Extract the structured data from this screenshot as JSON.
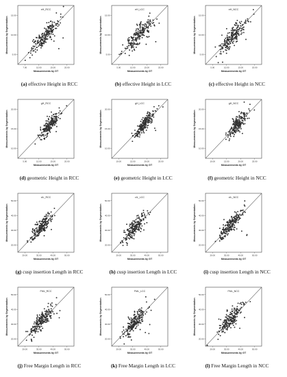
{
  "chart_data": [
    {
      "type": "scatter",
      "panel_title": "eH_RCC",
      "caption_letter": "(a)",
      "caption_text": "effective Height in RCC",
      "xlabel": "Measurements by GT",
      "ylabel": "Measurements by Segmentation",
      "xlim": [
        0,
        20
      ],
      "ylim": [
        0,
        20
      ],
      "x_ticks": [
        "7.00",
        "10.00",
        "15.00",
        "20.00"
      ],
      "y_ticks": [
        "5.00",
        "10.00",
        "15.00"
      ],
      "identity_line": true,
      "marker_color": "#333333",
      "n_points": 200,
      "center": [
        9.5,
        9.5
      ],
      "spread": 2.5,
      "noise": 1.4
    },
    {
      "type": "scatter",
      "panel_title": "eH_LCC",
      "caption_letter": "(b)",
      "caption_text": "effective Height in LCC",
      "xlabel": "Measurements by GT",
      "ylabel": "Measurements by Segmentation",
      "xlim": [
        0,
        20
      ],
      "ylim": [
        0,
        20
      ],
      "x_ticks": [
        "5.00",
        "10.00",
        "15.00",
        "20.00"
      ],
      "y_ticks": [
        "5.00",
        "10.00",
        "15.00"
      ],
      "identity_line": true,
      "marker_color": "#333333",
      "n_points": 200,
      "center": [
        9.3,
        9.5
      ],
      "spread": 2.6,
      "noise": 1.5
    },
    {
      "type": "scatter",
      "panel_title": "eH_NCC",
      "caption_letter": "(c)",
      "caption_text": "effective Height in NCC",
      "xlabel": "Measurements by GT",
      "ylabel": "Measurements by Segmentation",
      "xlim": [
        0,
        20
      ],
      "ylim": [
        0,
        20
      ],
      "x_ticks": [
        "5.00",
        "10.00",
        "15.00",
        "20.00"
      ],
      "y_ticks": [
        "5.00",
        "10.00",
        "15.00"
      ],
      "identity_line": true,
      "marker_color": "#333333",
      "n_points": 200,
      "center": [
        9.7,
        9.6
      ],
      "spread": 2.4,
      "noise": 1.5
    },
    {
      "type": "scatter",
      "panel_title": "gH_RCC",
      "caption_letter": "(d)",
      "caption_text": "geometric Height in RCC",
      "xlabel": "Measurements by GT",
      "ylabel": "Measurements by Segmentation",
      "xlim": [
        0,
        25
      ],
      "ylim": [
        0,
        25
      ],
      "x_ticks": [
        "5.00",
        "10.00",
        "15.00",
        "20.00"
      ],
      "y_ticks": [
        "10.00",
        "15.00",
        "20.00"
      ],
      "identity_line": true,
      "marker_color": "#333333",
      "n_points": 200,
      "center": [
        14.0,
        14.0
      ],
      "spread": 2.3,
      "noise": 1.6
    },
    {
      "type": "scatter",
      "panel_title": "gH_LCC",
      "caption_letter": "(e)",
      "caption_text": "geometric Height in LCC",
      "xlabel": "Measurements by GT",
      "ylabel": "Measurements by Segmentation",
      "xlim": [
        0,
        25
      ],
      "ylim": [
        0,
        25
      ],
      "x_ticks": [
        "10.00",
        "15.00",
        "20.00",
        "25.00"
      ],
      "y_ticks": [
        "10.00",
        "15.00",
        "20.00"
      ],
      "identity_line": true,
      "marker_color": "#333333",
      "n_points": 200,
      "center": [
        14.2,
        14.0
      ],
      "spread": 2.2,
      "noise": 1.5
    },
    {
      "type": "scatter",
      "panel_title": "gH_NCC",
      "caption_letter": "(f)",
      "caption_text": "geometric Height in NCC",
      "xlabel": "Measurements by GT",
      "ylabel": "Measurements by Segmentation",
      "xlim": [
        0,
        25
      ],
      "ylim": [
        0,
        25
      ],
      "x_ticks": [
        "10.00",
        "15.00",
        "20.00",
        "25.00"
      ],
      "y_ticks": [
        "10.00",
        "15.00",
        "20.00"
      ],
      "identity_line": true,
      "marker_color": "#333333",
      "n_points": 200,
      "center": [
        14.3,
        14.5
      ],
      "spread": 2.3,
      "noise": 1.6
    },
    {
      "type": "scatter",
      "panel_title": "cIL_RCC",
      "caption_letter": "(g)",
      "caption_text": "cusp insertion Length in RCC",
      "xlabel": "Measurements by GT",
      "ylabel": "Measurements by Segmentation",
      "xlim": [
        10,
        55
      ],
      "ylim": [
        10,
        55
      ],
      "x_ticks": [
        "20.00",
        "30.00",
        "40.00",
        "50.00"
      ],
      "y_ticks": [
        "20.00",
        "30.00",
        "40.00",
        "50.00"
      ],
      "identity_line": true,
      "marker_color": "#333333",
      "n_points": 200,
      "center": [
        29.0,
        29.5
      ],
      "spread": 4.5,
      "noise": 3.0
    },
    {
      "type": "scatter",
      "panel_title": "cIL_LCC",
      "caption_letter": "(h)",
      "caption_text": "cusp insertion Length in LCC",
      "xlabel": "Measurements by GT",
      "ylabel": "Measurements by Segmentation",
      "xlim": [
        10,
        55
      ],
      "ylim": [
        10,
        55
      ],
      "x_ticks": [
        "20.00",
        "30.00",
        "40.00",
        "50.00"
      ],
      "y_ticks": [
        "20.00",
        "30.00",
        "40.00",
        "50.00"
      ],
      "identity_line": true,
      "marker_color": "#333333",
      "n_points": 200,
      "center": [
        28.5,
        29.0
      ],
      "spread": 4.2,
      "noise": 3.2
    },
    {
      "type": "scatter",
      "panel_title": "cIL_NCC",
      "caption_letter": "(i)",
      "caption_text": "cusp insertion Length in NCC",
      "xlabel": "Measurements by GT",
      "ylabel": "Measurements by Segmentation",
      "xlim": [
        10,
        55
      ],
      "ylim": [
        10,
        55
      ],
      "x_ticks": [
        "20.00",
        "30.00",
        "40.00",
        "50.00"
      ],
      "y_ticks": [
        "20.00",
        "30.00",
        "40.00",
        "50.00"
      ],
      "identity_line": true,
      "marker_color": "#333333",
      "n_points": 200,
      "center": [
        30.0,
        30.5
      ],
      "spread": 4.8,
      "noise": 3.0
    },
    {
      "type": "scatter",
      "panel_title": "FML_RCC",
      "caption_letter": "(j)",
      "caption_text": "Free Margin Length in RCC",
      "xlabel": "Measurements by GT",
      "ylabel": "Measurements by Segmentation",
      "xlim": [
        15,
        55
      ],
      "ylim": [
        15,
        55
      ],
      "x_ticks": [
        "20.00",
        "30.00",
        "40.00",
        "50.00"
      ],
      "y_ticks": [
        "20.00",
        "30.00",
        "40.00",
        "50.00"
      ],
      "identity_line": true,
      "marker_color": "#333333",
      "n_points": 200,
      "center": [
        32.0,
        32.0
      ],
      "spread": 4.5,
      "noise": 2.8
    },
    {
      "type": "scatter",
      "panel_title": "FML_LCC",
      "caption_letter": "(k)",
      "caption_text": "Free Margin Length in LCC",
      "xlabel": "Measurements by GT",
      "ylabel": "Measurements by Segmentation",
      "xlim": [
        15,
        55
      ],
      "ylim": [
        15,
        55
      ],
      "x_ticks": [
        "20.00",
        "30.00",
        "40.00",
        "50.00"
      ],
      "y_ticks": [
        "20.00",
        "30.00",
        "40.00",
        "50.00"
      ],
      "identity_line": true,
      "marker_color": "#333333",
      "n_points": 200,
      "center": [
        31.0,
        31.0
      ],
      "spread": 4.2,
      "noise": 3.0
    },
    {
      "type": "scatter",
      "panel_title": "FML_NCC",
      "caption_letter": "(l)",
      "caption_text": "Free Margin Length in NCC",
      "xlabel": "Measurements by GT",
      "ylabel": "Measurements by Segmentation",
      "xlim": [
        15,
        55
      ],
      "ylim": [
        15,
        55
      ],
      "x_ticks": [
        "20.00",
        "30.00",
        "40.00",
        "50.00"
      ],
      "y_ticks": [
        "20.00",
        "30.00",
        "40.00",
        "50.00"
      ],
      "identity_line": true,
      "marker_color": "#333333",
      "n_points": 200,
      "center": [
        33.0,
        33.5
      ],
      "spread": 4.6,
      "noise": 3.0
    }
  ]
}
